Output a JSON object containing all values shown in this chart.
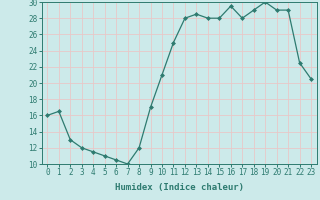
{
  "x": [
    0,
    1,
    2,
    3,
    4,
    5,
    6,
    7,
    8,
    9,
    10,
    11,
    12,
    13,
    14,
    15,
    16,
    17,
    18,
    19,
    20,
    21,
    22,
    23
  ],
  "y": [
    16,
    16.5,
    13,
    12,
    11.5,
    11,
    10.5,
    10,
    12,
    17,
    21,
    25,
    28,
    28.5,
    28,
    28,
    29.5,
    28,
    29,
    30,
    29,
    29,
    22.5,
    20.5
  ],
  "xlabel": "Humidex (Indice chaleur)",
  "ylabel": "",
  "xlim": [
    -0.5,
    23.5
  ],
  "ylim": [
    10,
    30
  ],
  "yticks": [
    10,
    12,
    14,
    16,
    18,
    20,
    22,
    24,
    26,
    28,
    30
  ],
  "xticks": [
    0,
    1,
    2,
    3,
    4,
    5,
    6,
    7,
    8,
    9,
    10,
    11,
    12,
    13,
    14,
    15,
    16,
    17,
    18,
    19,
    20,
    21,
    22,
    23
  ],
  "line_color": "#2e7b70",
  "marker_color": "#2e7b70",
  "bg_color": "#cceaea",
  "grid_color": "#e8c8c8",
  "plot_bg": "#cceaea",
  "font_color": "#2e7b70",
  "xlabel_fontsize": 6.5,
  "tick_fontsize": 5.5
}
